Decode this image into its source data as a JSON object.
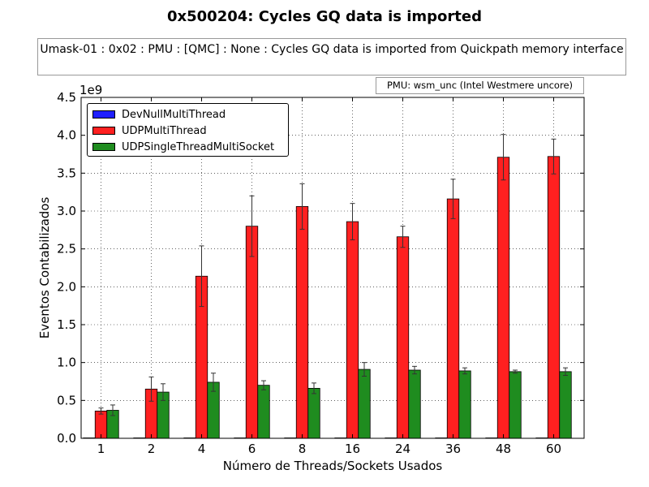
{
  "chart_data": {
    "type": "bar",
    "title": "0x500204: Cycles GQ data is imported",
    "subtitle": "Umask-01 : 0x02 : PMU : [QMC] : None : Cycles GQ data is imported from Quickpath memory interface",
    "annotation": "PMU: wsm_unc (Intel Westmere uncore)",
    "xlabel": "Número de Threads/Sockets Usados",
    "ylabel": "Eventos Contabilizados",
    "y_multiplier_label": "1e9",
    "categories": [
      "1",
      "2",
      "4",
      "6",
      "8",
      "16",
      "24",
      "36",
      "48",
      "60"
    ],
    "ylim": [
      0,
      4.5
    ],
    "yticks": [
      "0.0",
      "0.5",
      "1.0",
      "1.5",
      "2.0",
      "2.5",
      "3.0",
      "3.5",
      "4.0",
      "4.5"
    ],
    "grid": true,
    "legend_position": "top-left",
    "series": [
      {
        "name": "DevNullMultiThread",
        "color": "#1f1fff",
        "values": [
          0,
          0,
          0,
          0,
          0,
          0,
          0,
          0,
          0,
          0
        ],
        "errors": [
          0,
          0,
          0,
          0,
          0,
          0,
          0,
          0,
          0,
          0
        ]
      },
      {
        "name": "UDPMultiThread",
        "color": "#ff2020",
        "values": [
          0.36,
          0.65,
          2.14,
          2.8,
          3.06,
          2.86,
          2.66,
          3.16,
          3.71,
          3.72
        ],
        "errors": [
          0.04,
          0.16,
          0.4,
          0.4,
          0.3,
          0.24,
          0.14,
          0.26,
          0.3,
          0.23
        ]
      },
      {
        "name": "UDPSingleThreadMultiSocket",
        "color": "#1f8c1f",
        "values": [
          0.37,
          0.61,
          0.74,
          0.7,
          0.66,
          0.91,
          0.9,
          0.89,
          0.88,
          0.88
        ],
        "errors": [
          0.07,
          0.11,
          0.12,
          0.06,
          0.07,
          0.09,
          0.05,
          0.04,
          0.02,
          0.05
        ]
      }
    ]
  }
}
